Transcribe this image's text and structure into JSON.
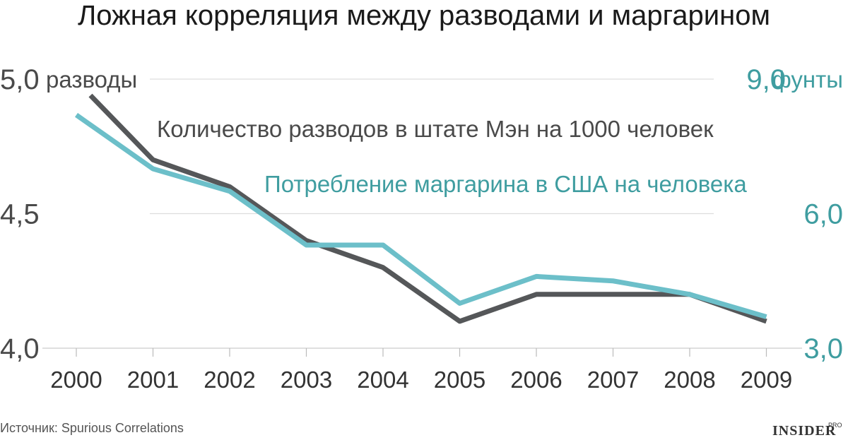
{
  "colors": {
    "divorce_line": "#555759",
    "margarine_line": "#6cbfc9",
    "left_axis_text": "#4a4a4a",
    "right_axis_text": "#3f9da0",
    "grid": "#dddddd"
  },
  "chart_data": {
    "type": "line",
    "title": "Ложная корреляция между разводами и маргарином",
    "categories": [
      "2000",
      "2001",
      "2002",
      "2003",
      "2004",
      "2005",
      "2006",
      "2007",
      "2008",
      "2009"
    ],
    "left_axis": {
      "ylim": [
        4.0,
        5.0
      ],
      "ticks": [
        "5,0",
        "4,5",
        "4,0"
      ],
      "tick_values": [
        5.0,
        4.5,
        4.0
      ],
      "unit": "разводы"
    },
    "right_axis": {
      "ylim": [
        3.0,
        9.0
      ],
      "ticks": [
        "9,0",
        "6,0",
        "3,0"
      ],
      "tick_values": [
        9.0,
        6.0,
        3.0
      ],
      "unit": "фунты"
    },
    "series": [
      {
        "name": "Количество разводов в штате Мэн на 1000 человек",
        "axis": "left",
        "values": [
          5.0,
          4.7,
          4.6,
          4.4,
          4.3,
          4.1,
          4.2,
          4.2,
          4.2,
          4.1
        ]
      },
      {
        "name": "Потребление маргарина в США на человека",
        "axis": "right",
        "values": [
          8.2,
          7.0,
          6.5,
          5.3,
          5.3,
          4.0,
          4.6,
          4.5,
          4.2,
          3.7
        ]
      }
    ],
    "grid": true,
    "legend": "inline-top"
  },
  "source": "Источник: Spurious Correlations",
  "logo": {
    "main": "INSIDER",
    "sup": "PRO"
  }
}
